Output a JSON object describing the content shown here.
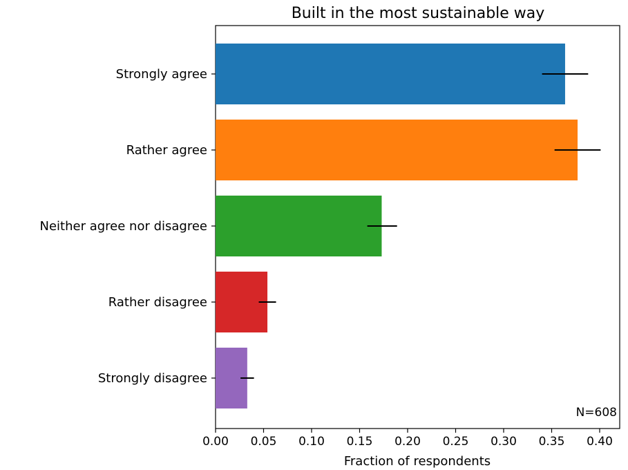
{
  "chart_data": {
    "type": "bar",
    "orientation": "horizontal",
    "title": "Built in the most sustainable way",
    "xlabel": "Fraction of respondents",
    "ylabel": "",
    "categories": [
      "Strongly agree",
      "Rather agree",
      "Neither agree nor disagree",
      "Rather disagree",
      "Strongly disagree"
    ],
    "values": [
      0.364,
      0.377,
      0.173,
      0.054,
      0.033
    ],
    "error_low": [
      0.34,
      0.353,
      0.158,
      0.045,
      0.026
    ],
    "error_high": [
      0.388,
      0.401,
      0.189,
      0.063,
      0.04
    ],
    "colors": [
      "#1f77b4",
      "#ff7f0e",
      "#2ca02c",
      "#d62728",
      "#9467bd"
    ],
    "error_color": "#000000",
    "xlim": [
      0,
      0.42
    ],
    "xticks": [
      0.0,
      0.05,
      0.1,
      0.15,
      0.2,
      0.25,
      0.3,
      0.35,
      0.4
    ],
    "xtick_labels": [
      "0.00",
      "0.05",
      "0.10",
      "0.15",
      "0.20",
      "0.25",
      "0.30",
      "0.35",
      "0.40"
    ],
    "grid": false,
    "annotation": "N=608"
  }
}
